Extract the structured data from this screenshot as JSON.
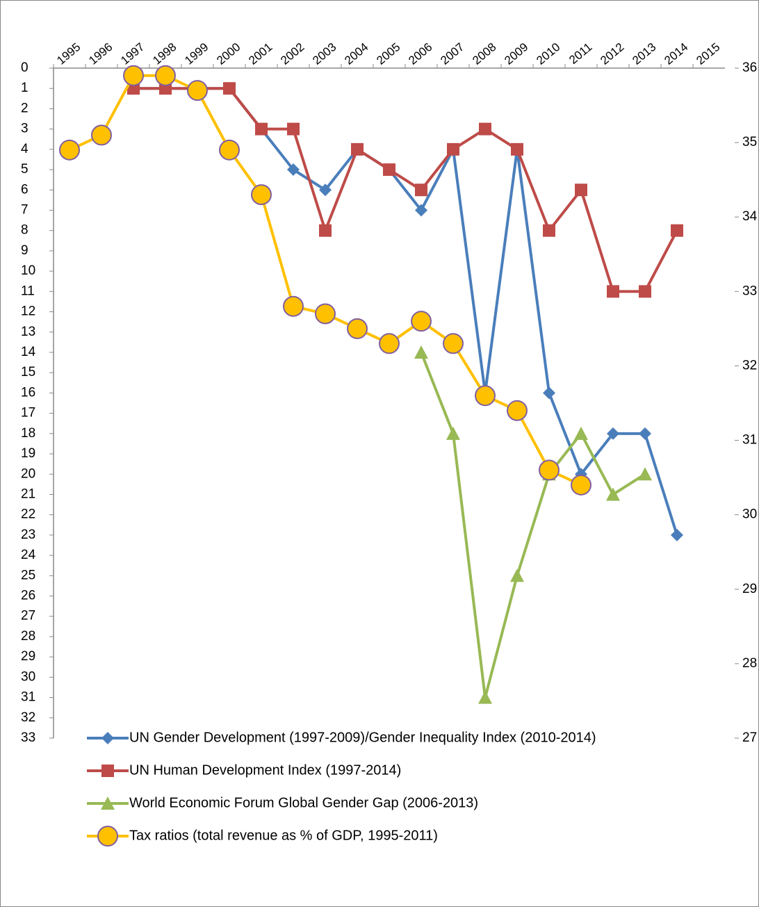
{
  "chart_data": {
    "type": "line",
    "categories": [
      "1995",
      "1996",
      "1997",
      "1998",
      "1999",
      "2000",
      "2001",
      "2002",
      "2003",
      "2004",
      "2005",
      "2006",
      "2007",
      "2008",
      "2009",
      "2010",
      "2011",
      "2012",
      "2013",
      "2014",
      "2015"
    ],
    "ylim": [
      0,
      33
    ],
    "y_reversed": true,
    "yticks": [
      0,
      1,
      2,
      3,
      4,
      5,
      6,
      7,
      8,
      9,
      10,
      11,
      12,
      13,
      14,
      15,
      16,
      17,
      18,
      19,
      20,
      21,
      22,
      23,
      24,
      25,
      26,
      27,
      28,
      29,
      30,
      31,
      32,
      33
    ],
    "y2lim": [
      27,
      36
    ],
    "y2ticks": [
      27,
      28,
      29,
      30,
      31,
      32,
      33,
      34,
      35,
      36
    ],
    "series": [
      {
        "name": "UN Gender Development (1997-2009)/Gender Inequality Index (2010-2014)",
        "color": "#4a7ebb",
        "marker": "diamond",
        "values": [
          null,
          null,
          1,
          1,
          1,
          1,
          3,
          5,
          6,
          4,
          5,
          7,
          4,
          16,
          4,
          16,
          20,
          18,
          18,
          23,
          null
        ]
      },
      {
        "name": "UN Human Development Index (1997-2014)",
        "color": "#be4b48",
        "marker": "square",
        "values": [
          null,
          null,
          1,
          1,
          1,
          1,
          3,
          3,
          8,
          4,
          5,
          6,
          4,
          3,
          4,
          8,
          6,
          11,
          11,
          8,
          null
        ]
      },
      {
        "name": "World Economic Forum Global Gender Gap (2006-2013)",
        "color": "#98b954",
        "marker": "triangle",
        "values": [
          null,
          null,
          null,
          null,
          null,
          null,
          null,
          null,
          null,
          null,
          null,
          14,
          18,
          31,
          25,
          20,
          18,
          21,
          20,
          null,
          null
        ]
      },
      {
        "name": "Tax ratios (total revenue as % of GDP, 1995-2011)",
        "color": "#ffc000",
        "marker": "circle",
        "marker_edge": "#7f5fa0",
        "axis": "y2",
        "values": [
          34.9,
          35.1,
          35.9,
          35.9,
          35.7,
          34.9,
          34.3,
          32.8,
          32.7,
          32.5,
          32.3,
          32.6,
          32.3,
          31.6,
          31.4,
          30.6,
          30.4,
          null,
          null,
          null,
          null
        ]
      }
    ]
  }
}
